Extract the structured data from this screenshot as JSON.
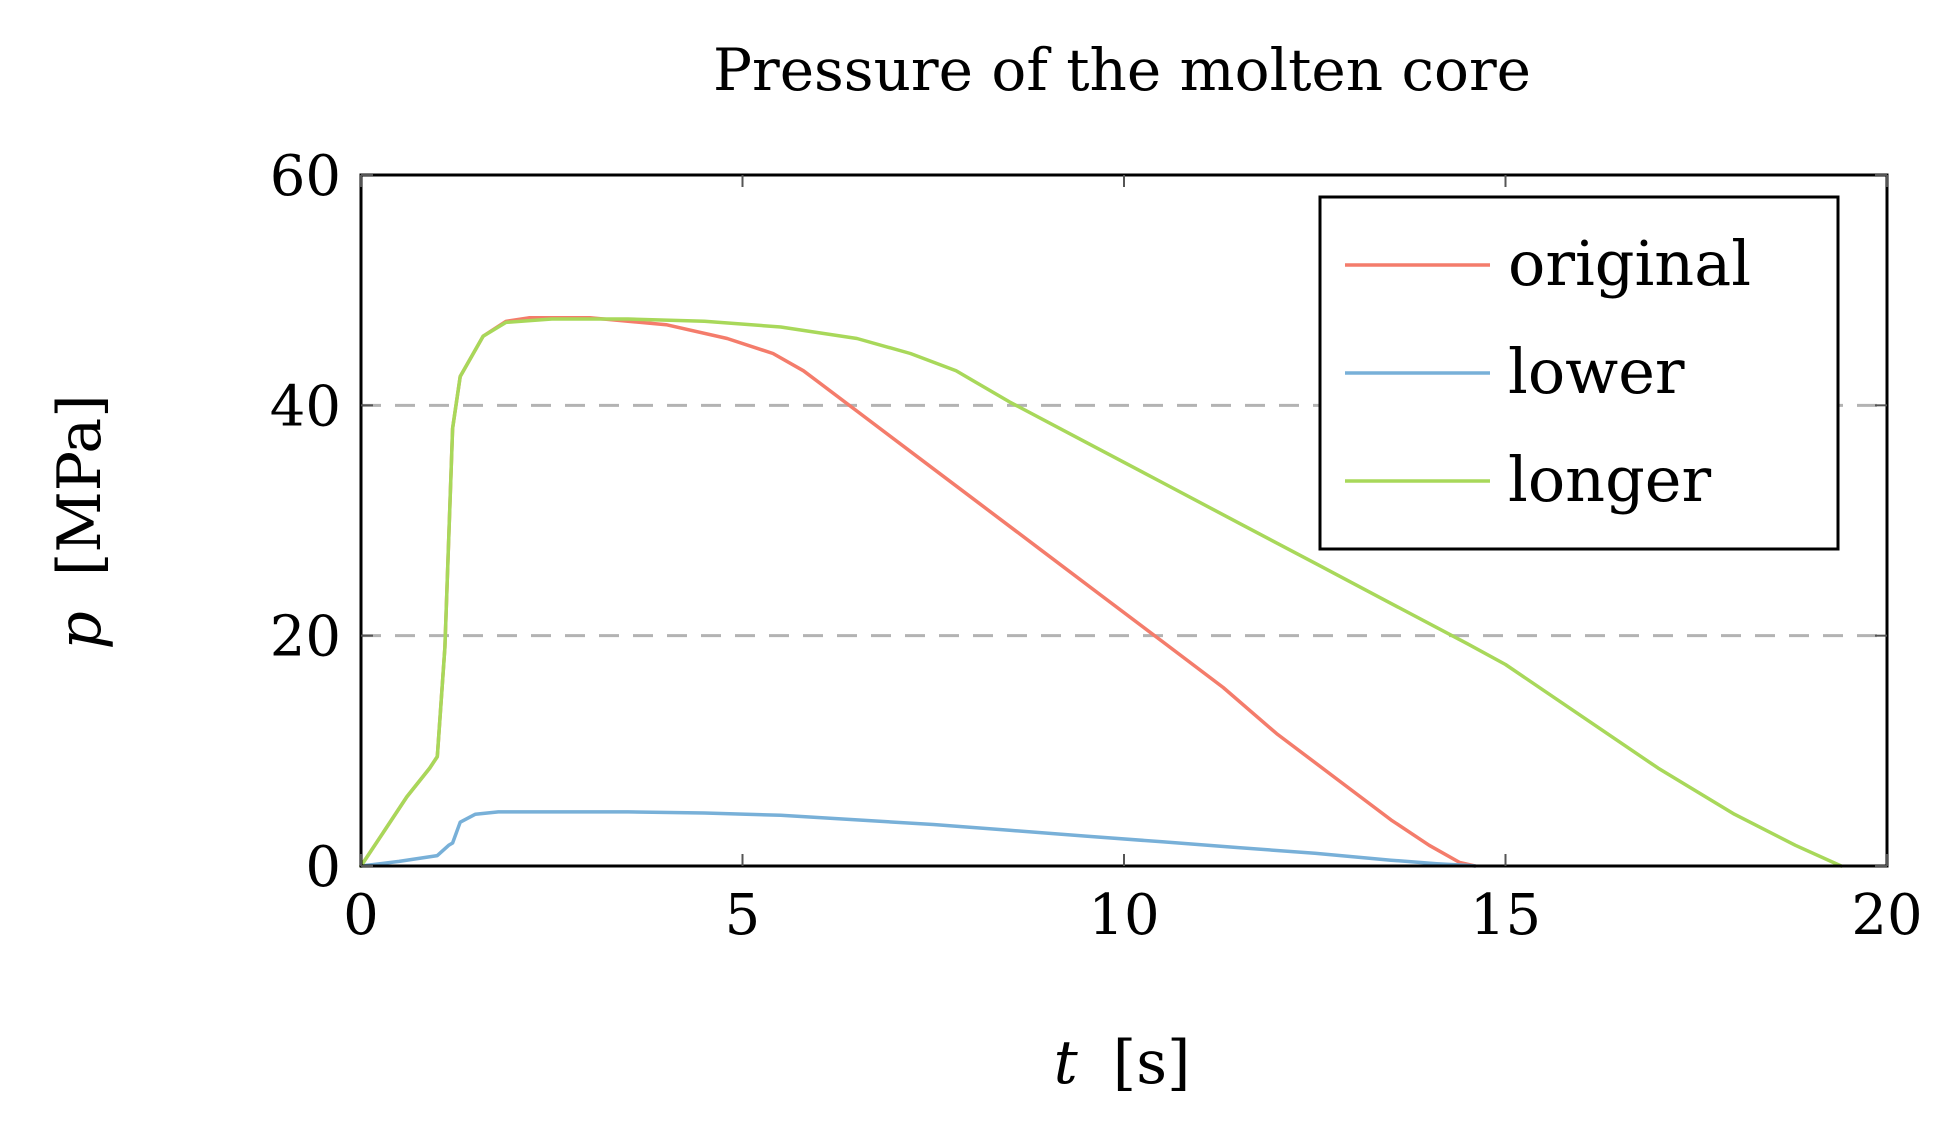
{
  "chart_data": {
    "type": "line",
    "title": "Pressure of the molten core",
    "xlabel_var": "t",
    "xlabel_unit": "[s]",
    "ylabel_var": "p",
    "ylabel_unit": "[MPa]",
    "xlim": [
      0,
      20
    ],
    "ylim": [
      0,
      60
    ],
    "xticks": [
      0,
      5,
      10,
      15,
      20
    ],
    "yticks": [
      0,
      20,
      40,
      60
    ],
    "grid": {
      "y": [
        20,
        40
      ],
      "style": "dashed"
    },
    "legend_position": "top-right",
    "series": [
      {
        "name": "original",
        "color": "#f47c6b",
        "x": [
          0,
          0.3,
          0.6,
          0.9,
          1.0,
          1.1,
          1.2,
          1.3,
          1.6,
          1.9,
          2.2,
          3.0,
          4.0,
          4.8,
          5.4,
          5.8,
          6.5,
          7.3,
          8.1,
          8.9,
          9.7,
          10.5,
          11.3,
          12.0,
          12.8,
          13.5,
          14.0,
          14.4,
          14.6
        ],
        "y": [
          0,
          3,
          6,
          8.5,
          9.5,
          19,
          38,
          42.5,
          46,
          47.3,
          47.6,
          47.6,
          47.0,
          45.8,
          44.5,
          43.0,
          39.5,
          35.5,
          31.5,
          27.5,
          23.5,
          19.5,
          15.5,
          11.5,
          7.5,
          4.0,
          1.8,
          0.3,
          0
        ]
      },
      {
        "name": "lower",
        "color": "#78b0d8",
        "x": [
          0,
          0.5,
          1.0,
          1.15,
          1.2,
          1.3,
          1.5,
          1.8,
          2.5,
          3.5,
          4.5,
          5.5,
          6.5,
          7.5,
          8.5,
          9.5,
          10.5,
          11.5,
          12.5,
          13.5,
          14.1,
          14.5,
          14.6
        ],
        "y": [
          0,
          0.4,
          0.9,
          1.8,
          2.0,
          3.8,
          4.5,
          4.7,
          4.7,
          4.7,
          4.6,
          4.4,
          4.0,
          3.6,
          3.1,
          2.6,
          2.1,
          1.6,
          1.1,
          0.5,
          0.2,
          0.05,
          0
        ]
      },
      {
        "name": "longer",
        "color": "#a8d85a",
        "x": [
          0,
          0.3,
          0.6,
          0.9,
          1.0,
          1.1,
          1.2,
          1.3,
          1.6,
          1.9,
          2.5,
          3.5,
          4.5,
          5.5,
          6.5,
          7.2,
          7.8,
          8.5,
          9.5,
          10.5,
          11.5,
          12.5,
          13.5,
          14.5,
          15.0,
          16.0,
          17.0,
          18.0,
          18.8,
          19.4
        ],
        "y": [
          0,
          3,
          6,
          8.5,
          9.5,
          19,
          38,
          42.5,
          46,
          47.2,
          47.5,
          47.5,
          47.3,
          46.8,
          45.8,
          44.5,
          43.0,
          40.3,
          36.8,
          33.3,
          29.8,
          26.3,
          22.8,
          19.3,
          17.5,
          13.0,
          8.5,
          4.5,
          1.8,
          0
        ]
      }
    ]
  }
}
